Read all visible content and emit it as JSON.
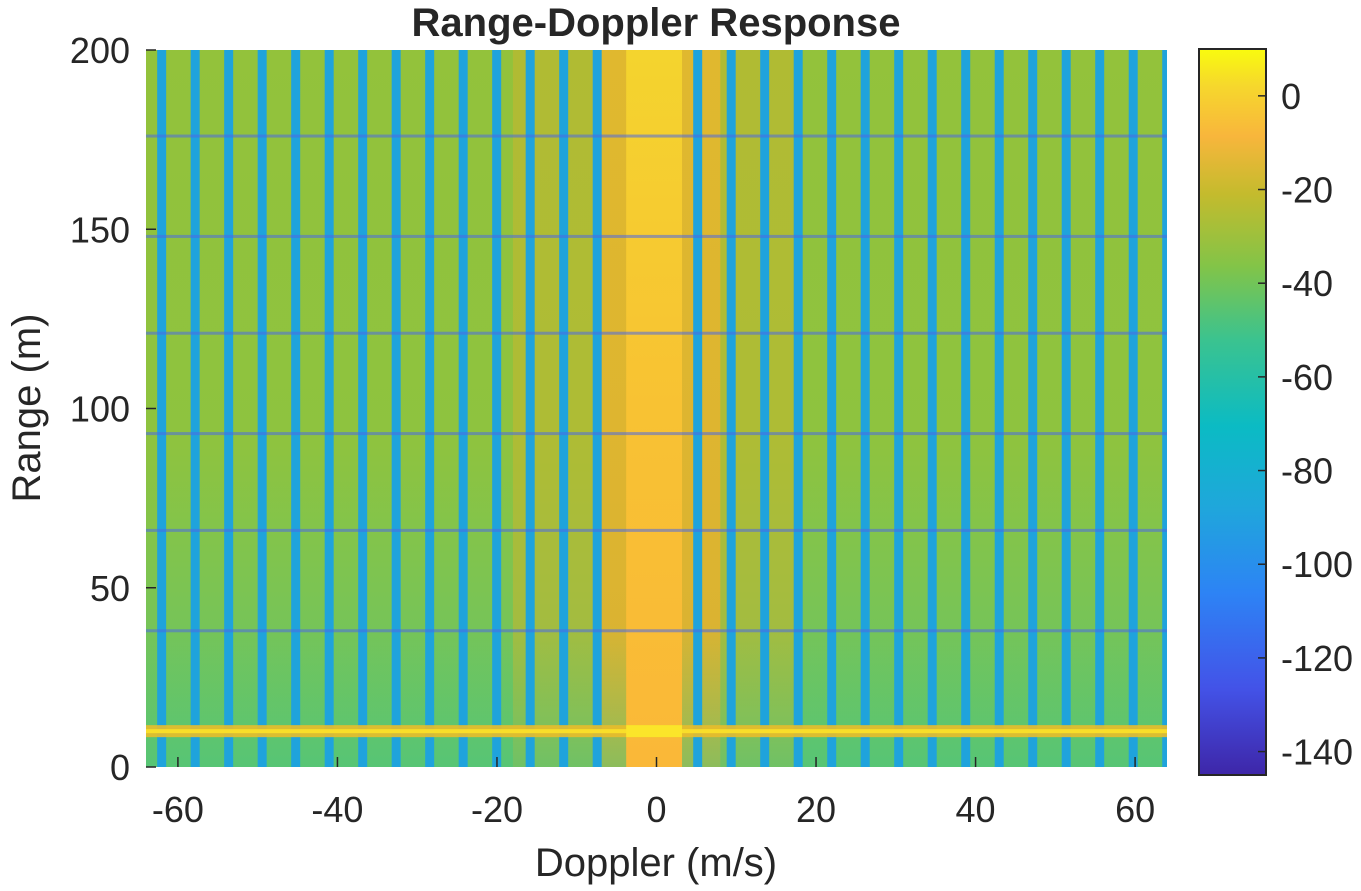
{
  "chart_data": {
    "type": "heatmap",
    "title": "Range-Doppler Response",
    "xlabel": "Doppler (m/s)",
    "ylabel": "Range (m)",
    "xlim": [
      -64,
      64
    ],
    "ylim": [
      0,
      200
    ],
    "x_ticks": [
      -60,
      -40,
      -20,
      0,
      20,
      40,
      60
    ],
    "y_ticks": [
      0,
      50,
      100,
      150,
      200
    ],
    "colorbar": {
      "colormap": "parula",
      "clim": [
        -145,
        10
      ],
      "ticks": [
        0,
        -20,
        -40,
        -60,
        -80,
        -100,
        -120,
        -140
      ]
    },
    "description_values": {
      "zero_doppler_column": {
        "doppler_range": [
          -3.8,
          3.2
        ],
        "level_db": -10
      },
      "stripes": {
        "period_m_per_s": 4.2,
        "stripe_level_db": -82,
        "background_level_db": -40
      },
      "strong_range_line": {
        "range_m": 10,
        "level_db": -20
      },
      "null_ranges_m": [
        176,
        148,
        121,
        93,
        66,
        38
      ]
    }
  }
}
